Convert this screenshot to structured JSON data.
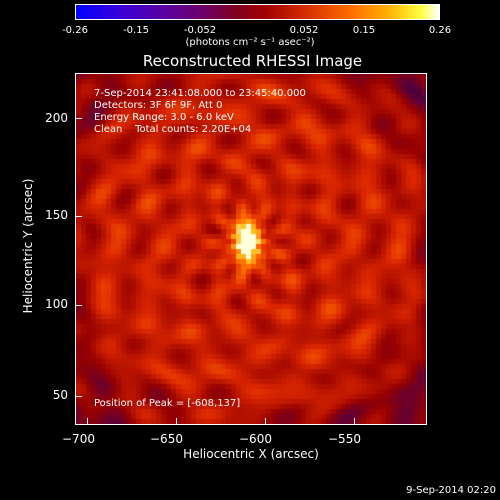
{
  "colorbar": {
    "ticks": [
      "-0.26",
      "-0.15",
      "-0.052",
      "0.052",
      "0.15",
      "0.26"
    ],
    "unit": "(photons cm⁻² s⁻¹ asec⁻²)"
  },
  "title": "Reconstructed RHESSI Image",
  "annotations": {
    "time_range": "7-Sep-2014 23:41:08.000 to 23:45:40.000",
    "detectors": "Detectors: 3F 6F 9F, Att 0",
    "energy": "Energy Range: 3.0 - 6.0 keV",
    "clean": "Clean    Total counts: 2.20E+04",
    "peak": "Position of Peak = [-608,137]"
  },
  "axes": {
    "xlabel": "Heliocentric X (arcsec)",
    "ylabel": "Heliocentric Y (arcsec)",
    "xticks": [
      "−700",
      "−650",
      "−600",
      "−550"
    ],
    "yticks": [
      "200",
      "150",
      "100",
      "50"
    ]
  },
  "footer": "9-Sep-2014 02:20",
  "colors": {
    "background": "#000000",
    "foreground": "#ffffff"
  }
}
